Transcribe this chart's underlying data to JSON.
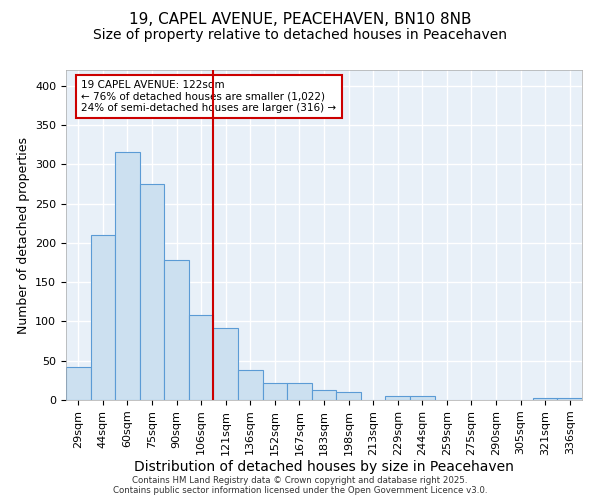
{
  "title1": "19, CAPEL AVENUE, PEACEHAVEN, BN10 8NB",
  "title2": "Size of property relative to detached houses in Peacehaven",
  "xlabel": "Distribution of detached houses by size in Peacehaven",
  "ylabel": "Number of detached properties",
  "footer": "Contains HM Land Registry data © Crown copyright and database right 2025.\nContains public sector information licensed under the Open Government Licence v3.0.",
  "bin_labels": [
    "29sqm",
    "44sqm",
    "60sqm",
    "75sqm",
    "90sqm",
    "106sqm",
    "121sqm",
    "136sqm",
    "152sqm",
    "167sqm",
    "183sqm",
    "198sqm",
    "213sqm",
    "229sqm",
    "244sqm",
    "259sqm",
    "275sqm",
    "290sqm",
    "305sqm",
    "321sqm",
    "336sqm"
  ],
  "bar_values": [
    42,
    210,
    315,
    275,
    178,
    108,
    92,
    38,
    22,
    22,
    13,
    10,
    0,
    5,
    5,
    0,
    0,
    0,
    0,
    3,
    2
  ],
  "bar_color": "#cce0f0",
  "bar_edge_color": "#5b9bd5",
  "vline_color": "#cc0000",
  "vline_pos": 5.5,
  "annotation_text": "19 CAPEL AVENUE: 122sqm\n← 76% of detached houses are smaller (1,022)\n24% of semi-detached houses are larger (316) →",
  "annotation_box_color": "#cc0000",
  "ylim": [
    0,
    420
  ],
  "yticks": [
    0,
    50,
    100,
    150,
    200,
    250,
    300,
    350,
    400
  ],
  "background_color": "#e8f0f8",
  "grid_color": "#ffffff",
  "title_fontsize": 11,
  "subtitle_fontsize": 10,
  "axis_fontsize": 9,
  "tick_fontsize": 8
}
